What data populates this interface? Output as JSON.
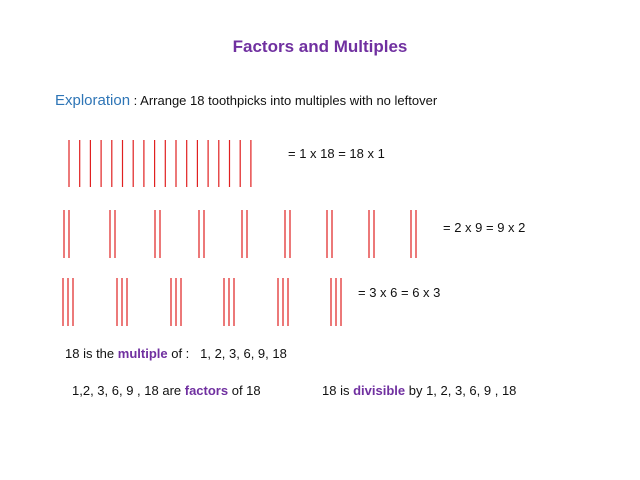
{
  "title": "Factors and Multiples",
  "intro": {
    "label": "Exploration",
    "text": " : Arrange 18 toothpicks into multiples with no leftover"
  },
  "arrangements": [
    "= 1 x 18 = 18 x 1",
    "= 2 x 9 = 9 x 2",
    "= 3 x 6 = 6 x 3"
  ],
  "multiple_line": {
    "before": "18 is the ",
    "keyword": "multiple",
    "after": " of :   1, 2, 3, 6, 9, 18"
  },
  "factors_line": {
    "before": "1,2, 3, 6, 9 , 18 are ",
    "keyword": "factors",
    "after": " of 18"
  },
  "divisible_line": {
    "before": "18 is ",
    "keyword": "divisible",
    "after": " by 1, 2, 3, 6, 9 , 18"
  }
}
